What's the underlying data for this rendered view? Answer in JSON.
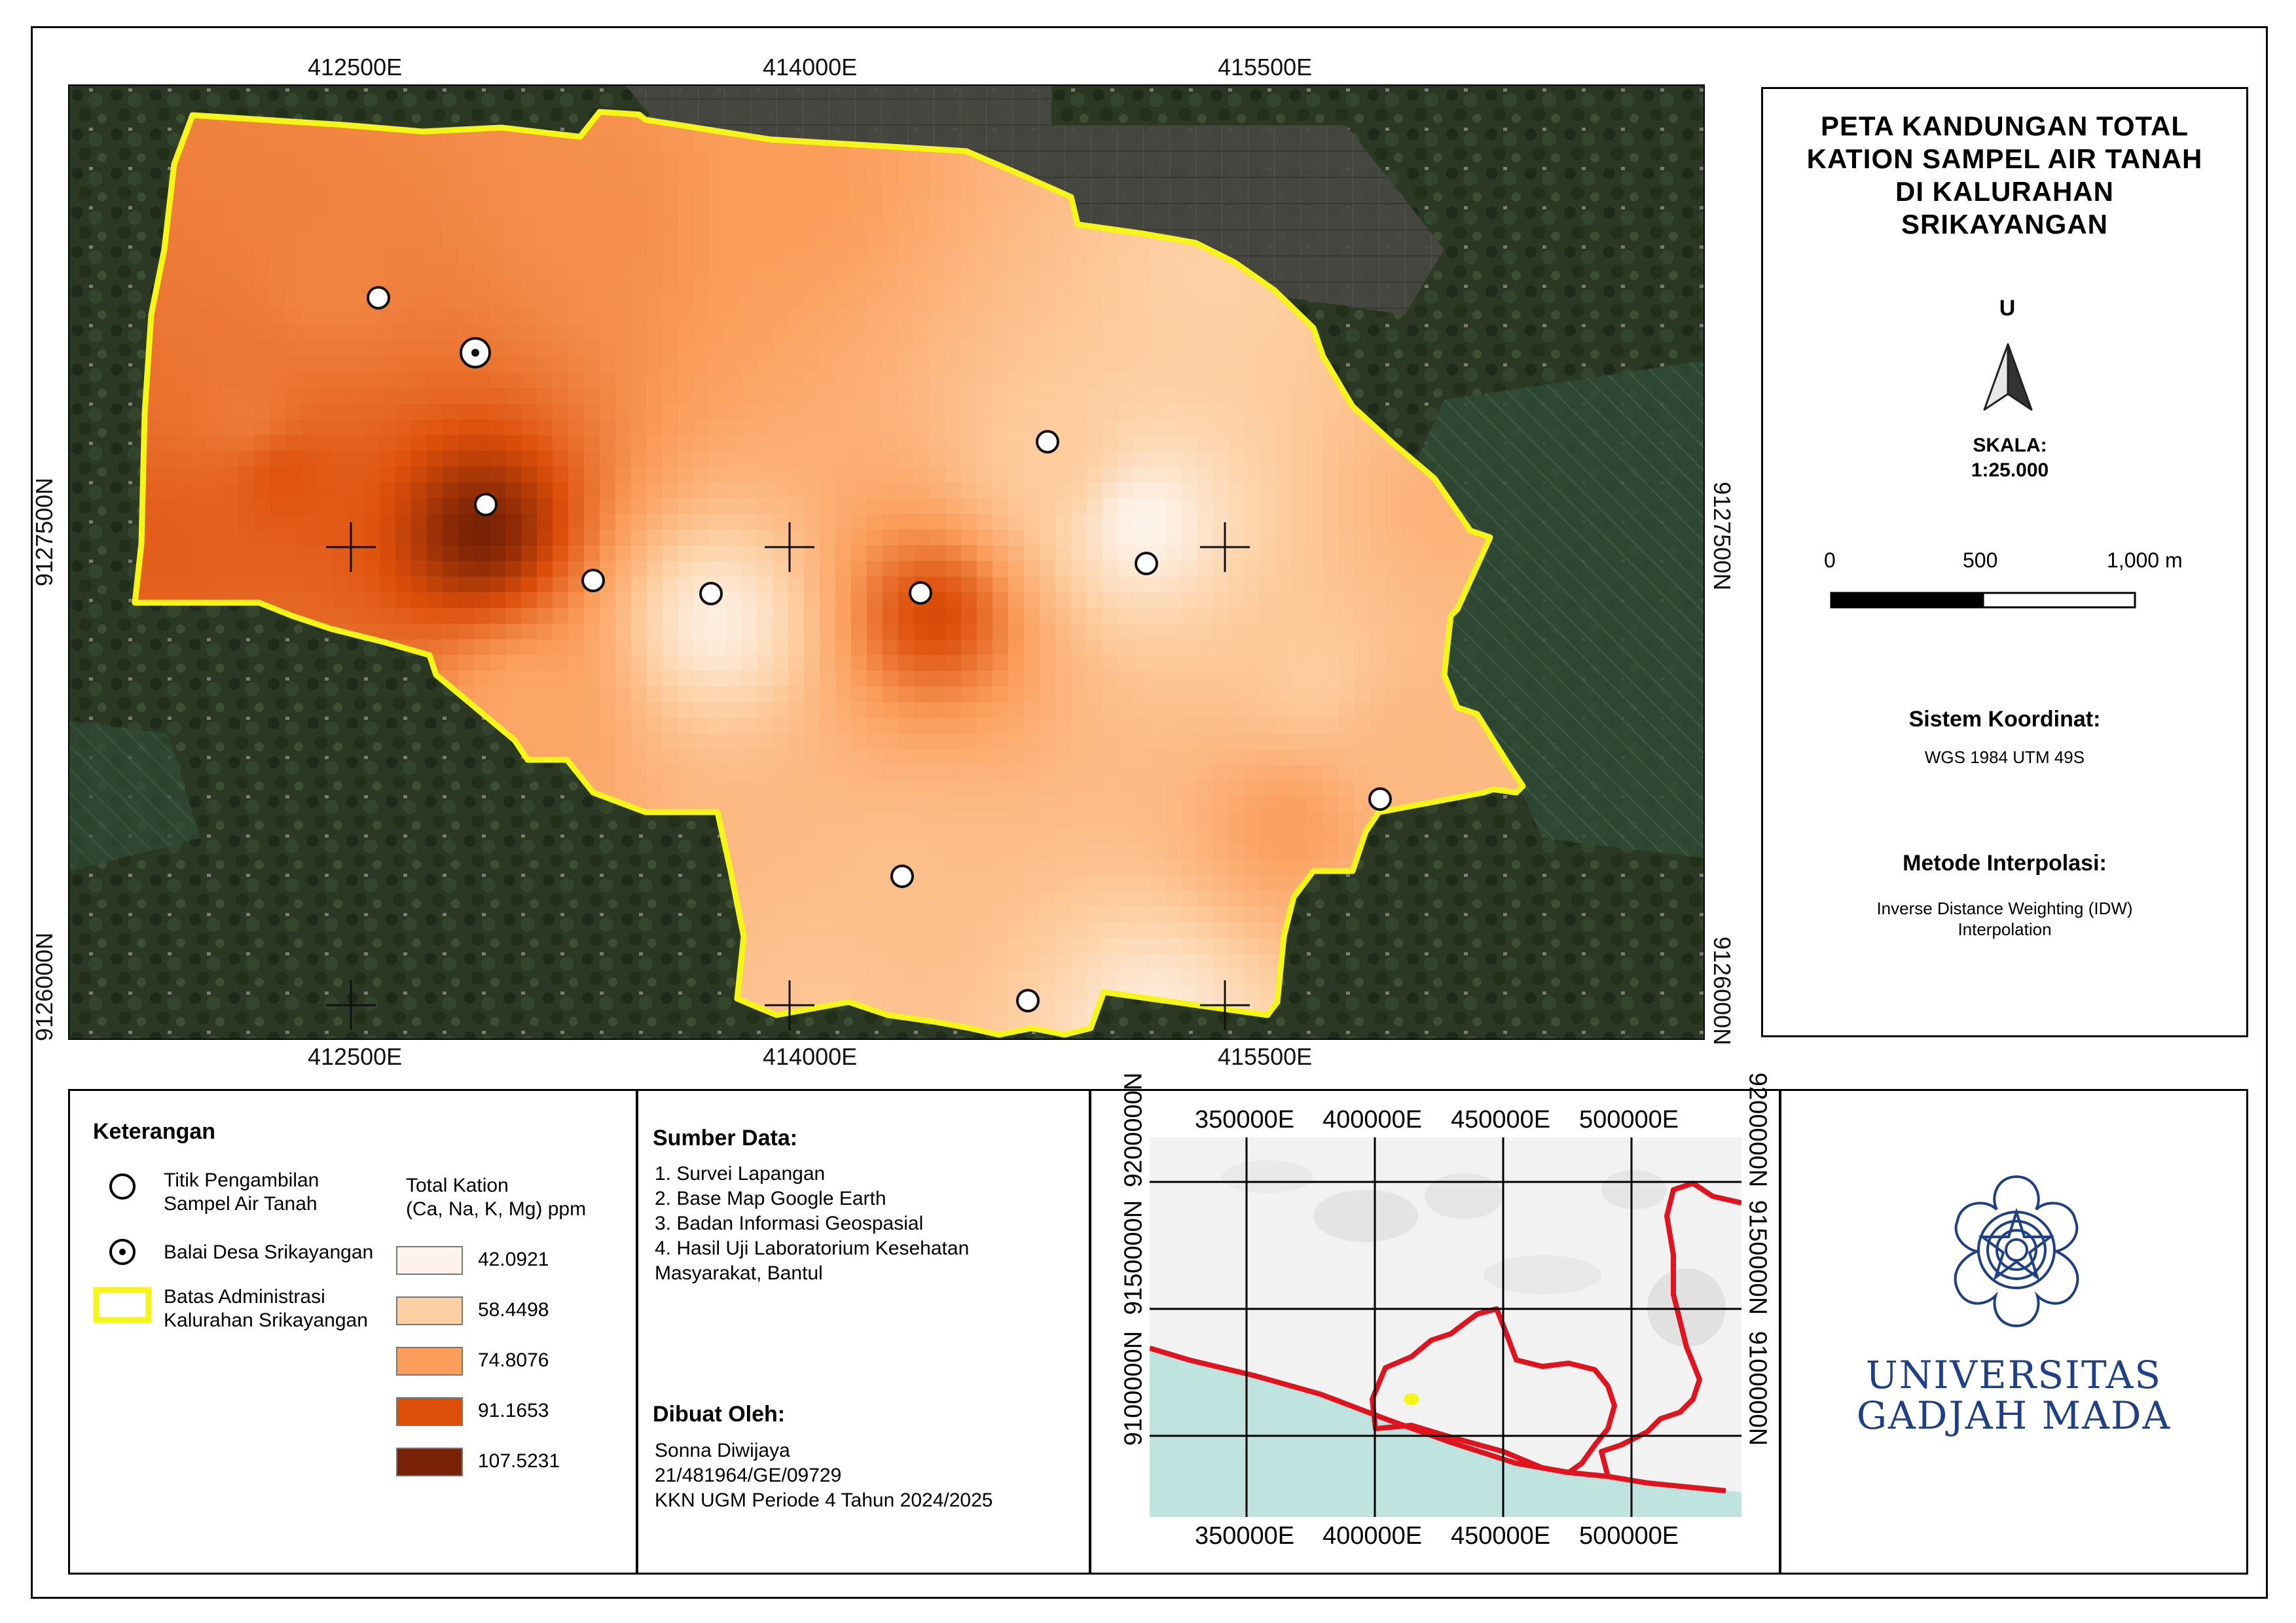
{
  "map": {
    "top_x_labels": [
      "412500E",
      "414000E",
      "415500E"
    ],
    "bottom_x_labels": [
      "412500E",
      "414000E",
      "415500E"
    ],
    "left_y_labels": [
      "9127500N",
      "9126000N"
    ],
    "right_y_labels": [
      "9127500N",
      "9126000N"
    ],
    "colors": {
      "boundary": "#f5f51a",
      "sample_marker": "#ffffff",
      "ramp": [
        "#fdf3ea",
        "#fdd0a3",
        "#fb9d5b",
        "#dc4e0a",
        "#7a2205"
      ]
    }
  },
  "title": {
    "lines": [
      "PETA KANDUNGAN TOTAL",
      "KATION SAMPEL AIR TANAH",
      "DI KALURAHAN",
      "SRIKAYANGAN"
    ]
  },
  "north_arrow": {
    "label": "U"
  },
  "scale": {
    "label_line1": "SKALA:",
    "label_line2": "1:25.000",
    "bar_labels": [
      "0",
      "500",
      "1,000 m"
    ]
  },
  "coordinate_system": {
    "heading": "Sistem Koordinat:",
    "value": "WGS 1984 UTM 49S"
  },
  "interpolation": {
    "heading": "Metode Interpolasi:",
    "value_line1": "Inverse Distance Weighting (IDW)",
    "value_line2": "Interpolation"
  },
  "legend": {
    "heading": "Keterangan",
    "items": [
      {
        "label_line1": "Titik Pengambilan",
        "label_line2": "Sampel Air Tanah"
      },
      {
        "label_line1": "Balai Desa Srikayangan",
        "label_line2": ""
      },
      {
        "label_line1": "Batas Administrasi",
        "label_line2": "Kalurahan Srikayangan"
      }
    ],
    "ramp_heading_line1": "Total Kation",
    "ramp_heading_line2": "(Ca, Na, K, Mg) ppm",
    "ramp": [
      {
        "value": "42.0921",
        "color": "#fdf3ea"
      },
      {
        "value": "58.4498",
        "color": "#fdd0a3"
      },
      {
        "value": "74.8076",
        "color": "#fb9d5b"
      },
      {
        "value": "91.1653",
        "color": "#dc4e0a"
      },
      {
        "value": "107.5231",
        "color": "#7a2205"
      }
    ]
  },
  "sources": {
    "heading": "Sumber Data:",
    "items": [
      "1. Survei Lapangan",
      "2. Base Map Google Earth",
      "3. Badan Informasi Geospasial",
      "4. Hasil Uji Laboratorium Kesehatan",
      "Masyarakat, Bantul"
    ]
  },
  "author": {
    "heading": "Dibuat Oleh:",
    "lines": [
      "Sonna Diwijaya",
      "21/481964/GE/09729",
      "KKN UGM Periode 4 Tahun 2024/2025"
    ]
  },
  "inset": {
    "top_x_labels": [
      "350000E",
      "400000E",
      "450000E",
      "500000E"
    ],
    "bottom_x_labels": [
      "350000E",
      "400000E",
      "450000E",
      "500000E"
    ],
    "left_y_labels": [
      "9100000N",
      "9150000N",
      "9200000N"
    ],
    "right_y_labels": [
      "9200000N",
      "9150000N",
      "9100000N"
    ],
    "colors": {
      "sea": "#bfe3df",
      "boundary": "#e0141e",
      "marker": "#f5f51a"
    }
  },
  "logo": {
    "line1": "UNIVERSITAS",
    "line2": "GADJAH MADA"
  }
}
